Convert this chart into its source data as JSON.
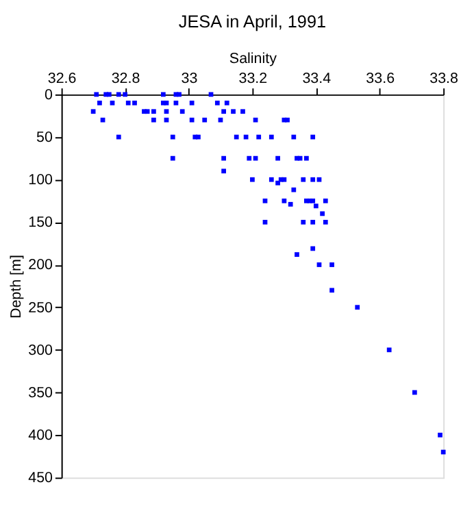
{
  "chart_data": {
    "type": "scatter",
    "title": "JESA in April, 1991",
    "xlabel": "Salinity",
    "ylabel": "Depth [m]",
    "xlim": [
      32.6,
      33.8
    ],
    "xticks": [
      32.6,
      32.8,
      33,
      33.2,
      33.4,
      33.6,
      33.8
    ],
    "ylim": [
      450,
      0
    ],
    "yticks": [
      0,
      50,
      100,
      150,
      200,
      250,
      300,
      350,
      400,
      450
    ],
    "marker": "square",
    "grid": false,
    "series": [
      {
        "color": "#0000ff",
        "x": [
          32.71,
          32.74,
          32.75,
          32.78,
          32.8,
          32.92,
          32.96,
          32.97,
          33.07,
          32.72,
          32.76,
          32.81,
          32.83,
          32.92,
          32.93,
          32.96,
          33.01,
          33.09,
          33.12,
          32.7,
          32.86,
          32.87,
          32.89,
          32.93,
          32.98,
          33.11,
          33.14,
          33.17,
          32.73,
          32.89,
          32.93,
          33.01,
          33.05,
          33.1,
          33.21,
          33.3,
          33.31,
          32.78,
          32.95,
          33.02,
          33.03,
          33.15,
          33.18,
          33.22,
          33.26,
          33.33,
          33.39,
          32.95,
          33.11,
          33.19,
          33.21,
          33.28,
          33.34,
          33.35,
          33.37,
          33.11,
          33.2,
          33.26,
          33.29,
          33.3,
          33.36,
          33.39,
          33.41,
          33.28,
          33.33,
          33.24,
          33.3,
          33.37,
          33.38,
          33.39,
          33.43,
          33.32,
          33.4,
          33.42,
          33.24,
          33.36,
          33.39,
          33.43,
          33.39,
          33.34,
          33.41,
          33.45,
          33.45,
          33.53,
          33.63,
          33.71,
          33.79,
          33.8
        ],
        "values": [
          0,
          0,
          0,
          0,
          0,
          0,
          0,
          0,
          0,
          10,
          10,
          10,
          10,
          10,
          10,
          10,
          10,
          10,
          10,
          20,
          20,
          20,
          20,
          20,
          20,
          20,
          20,
          20,
          30,
          30,
          30,
          30,
          30,
          30,
          30,
          30,
          30,
          50,
          50,
          50,
          50,
          50,
          50,
          50,
          50,
          50,
          50,
          75,
          75,
          75,
          75,
          75,
          75,
          75,
          75,
          90,
          100,
          100,
          100,
          100,
          100,
          100,
          100,
          104,
          112,
          125,
          125,
          125,
          125,
          125,
          125,
          129,
          131,
          140,
          150,
          150,
          150,
          150,
          181,
          188,
          200,
          200,
          230,
          250,
          300,
          350,
          400,
          420
        ]
      }
    ]
  }
}
